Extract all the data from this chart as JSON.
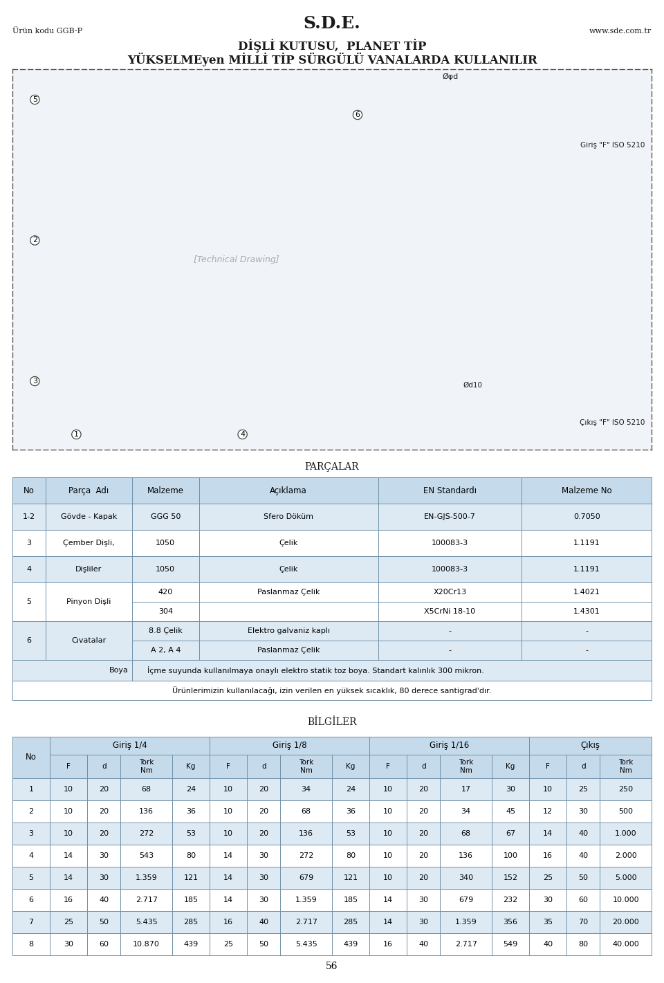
{
  "title_main": "S.D.E.",
  "subtitle1": "DİŞLİ KUTUSU,  PLANET TİP",
  "subtitle2": "YÜKSELMEyen MİLLİ TİP SÜRGÜLÜ VANALARDA KULLANILIR",
  "header_left": "Ürün kodu GGB-P",
  "header_right": "www.sde.com.tr",
  "parcalar_title": "PARÇALAR",
  "parcalar_headers": [
    "No",
    "Parça  Adı",
    "Malzeme",
    "Açıklama",
    "EN Standardı",
    "Malzeme No"
  ],
  "bilgiler_title": "BİLGİLER",
  "bilgiler_group_headers": [
    "Giriş 1/4",
    "Giriş 1/8",
    "Giriş 1/16",
    "Çıkış"
  ],
  "bilgiler_rows": [
    [
      "1",
      "10",
      "20",
      "68",
      "24",
      "10",
      "20",
      "34",
      "24",
      "10",
      "20",
      "17",
      "30",
      "10",
      "25",
      "250"
    ],
    [
      "2",
      "10",
      "20",
      "136",
      "36",
      "10",
      "20",
      "68",
      "36",
      "10",
      "20",
      "34",
      "45",
      "12",
      "30",
      "500"
    ],
    [
      "3",
      "10",
      "20",
      "272",
      "53",
      "10",
      "20",
      "136",
      "53",
      "10",
      "20",
      "68",
      "67",
      "14",
      "40",
      "1.000"
    ],
    [
      "4",
      "14",
      "30",
      "543",
      "80",
      "14",
      "30",
      "272",
      "80",
      "10",
      "20",
      "136",
      "100",
      "16",
      "40",
      "2.000"
    ],
    [
      "5",
      "14",
      "30",
      "1.359",
      "121",
      "14",
      "30",
      "679",
      "121",
      "10",
      "20",
      "340",
      "152",
      "25",
      "50",
      "5.000"
    ],
    [
      "6",
      "16",
      "40",
      "2.717",
      "185",
      "14",
      "30",
      "1.359",
      "185",
      "14",
      "30",
      "679",
      "232",
      "30",
      "60",
      "10.000"
    ],
    [
      "7",
      "25",
      "50",
      "5.435",
      "285",
      "16",
      "40",
      "2.717",
      "285",
      "14",
      "30",
      "1.359",
      "356",
      "35",
      "70",
      "20.000"
    ],
    [
      "8",
      "30",
      "60",
      "10.870",
      "439",
      "25",
      "50",
      "5.435",
      "439",
      "16",
      "40",
      "2.717",
      "549",
      "40",
      "80",
      "40.000"
    ]
  ],
  "footer": "56",
  "bg_color": "#ffffff",
  "header_bg": "#c5daea",
  "row_alt_bg": "#ddeaf4",
  "border_color": "#7090a8",
  "boya_text": "İçme suyunda kullanılmaya onaylı elektro statik toz boya. Standart kalınlık 300 mikron.",
  "disclaimer_text": "Ürünlerimizin kullanılacağı, izin verilen en yüksek sıcaklık, 80 derece santigrad'dır."
}
